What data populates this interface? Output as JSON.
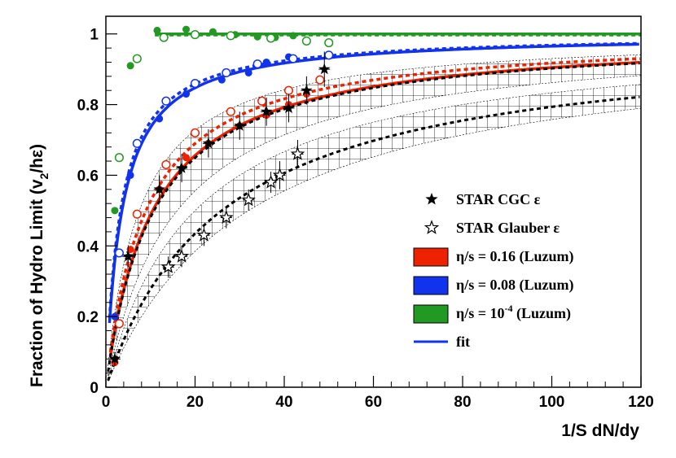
{
  "chart_data": {
    "type": "scatter",
    "title": "",
    "xlabel": "1/S dN/dy",
    "ylabel_parts": {
      "a": "Fraction of Hydro Limit (v",
      "sub": "2",
      "b": "/hε)"
    },
    "xlim": [
      0,
      120
    ],
    "ylim": [
      0,
      1.05
    ],
    "xticks": [
      0,
      20,
      40,
      60,
      80,
      100,
      120
    ],
    "yticks": [
      0,
      0.2,
      0.4,
      0.6,
      0.8,
      1
    ],
    "ytick_labels": [
      "0",
      "0.2",
      "0.4",
      "0.6",
      "0.8",
      "1"
    ],
    "colors": {
      "red": "#ee2200",
      "blue": "#1133ee",
      "green": "#229922",
      "black": "#000000"
    },
    "series": [
      {
        "name": "η/s = 10^-4 (Luzum) filled",
        "color": "green",
        "marker": "filled",
        "x": [
          2,
          5.5,
          11.5,
          18,
          24,
          29,
          34,
          38,
          42
        ],
        "y": [
          0.5,
          0.91,
          1.01,
          1.013,
          1.006,
          0.998,
          0.992,
          0.99,
          0.995
        ]
      },
      {
        "name": "η/s = 10^-4 (Luzum) open",
        "color": "green",
        "marker": "open",
        "x": [
          3,
          7,
          13,
          20,
          28,
          37,
          45,
          50
        ],
        "y": [
          0.65,
          0.93,
          0.99,
          0.998,
          0.995,
          0.988,
          0.98,
          0.975
        ]
      },
      {
        "name": "η/s = 0.08 (Luzum) filled",
        "color": "blue",
        "marker": "filled",
        "x": [
          2,
          5.5,
          12,
          18,
          26,
          32,
          36,
          41
        ],
        "y": [
          0.2,
          0.6,
          0.76,
          0.83,
          0.87,
          0.89,
          0.92,
          0.935
        ]
      },
      {
        "name": "η/s = 0.08 (Luzum) open",
        "color": "blue",
        "marker": "open",
        "x": [
          3,
          7,
          13.5,
          20,
          27,
          34,
          42,
          50
        ],
        "y": [
          0.38,
          0.69,
          0.81,
          0.86,
          0.89,
          0.915,
          0.93,
          0.94
        ]
      },
      {
        "name": "η/s = 0.16 (Luzum) filled",
        "color": "red",
        "marker": "filled",
        "x": [
          2,
          5.5,
          12,
          18,
          23,
          30,
          36,
          41,
          45
        ],
        "y": [
          0.07,
          0.39,
          0.56,
          0.65,
          0.69,
          0.74,
          0.77,
          0.8,
          0.83
        ]
      },
      {
        "name": "η/s = 0.16 (Luzum) open",
        "color": "red",
        "marker": "open",
        "x": [
          3,
          7,
          13.5,
          20,
          28,
          35,
          41,
          48
        ],
        "y": [
          0.18,
          0.49,
          0.63,
          0.72,
          0.78,
          0.81,
          0.84,
          0.87
        ]
      },
      {
        "name": "STAR CGC ε",
        "color": "black",
        "marker": "star-filled",
        "x": [
          2,
          5,
          12,
          17,
          23,
          30,
          36,
          41,
          45,
          49
        ],
        "y": [
          0.08,
          0.37,
          0.56,
          0.62,
          0.69,
          0.74,
          0.78,
          0.79,
          0.84,
          0.9
        ],
        "yerr": [
          0.02,
          0.03,
          0.04,
          0.04,
          0.04,
          0.04,
          0.04,
          0.04,
          0.04,
          0.05
        ]
      },
      {
        "name": "STAR Glauber ε",
        "color": "black",
        "marker": "star-open",
        "x": [
          14,
          17,
          22,
          27,
          32,
          37,
          39,
          43
        ],
        "y": [
          0.34,
          0.37,
          0.43,
          0.48,
          0.53,
          0.58,
          0.6,
          0.66
        ],
        "yerr": [
          0.03,
          0.03,
          0.03,
          0.03,
          0.03,
          0.03,
          0.04,
          0.04
        ]
      }
    ],
    "fits": [
      {
        "color": "green",
        "style": "solid",
        "function": "y=1",
        "x_range": [
          11,
          120
        ]
      },
      {
        "color": "green",
        "style": "dashed",
        "function": "y=1",
        "x_range": [
          11,
          120
        ]
      },
      {
        "color": "blue",
        "style": "solid",
        "K": 3.6,
        "x_range": [
          0.8,
          120
        ]
      },
      {
        "color": "blue",
        "style": "dashed",
        "K": 3.3,
        "x_range": [
          0.8,
          120
        ]
      },
      {
        "color": "red",
        "style": "solid",
        "K": 10.5,
        "x_range": [
          1,
          120
        ]
      },
      {
        "color": "red",
        "style": "dashed",
        "K": 9.0,
        "x_range": [
          1,
          120
        ]
      },
      {
        "color": "black",
        "style": "dashed",
        "K": 10.8,
        "x_range": [
          0.5,
          120
        ]
      },
      {
        "color": "black",
        "style": "dashed",
        "K": 26.0,
        "x_range": [
          0.5,
          120
        ]
      }
    ],
    "bands": [
      {
        "name": "Glauber band",
        "pattern": "hatch",
        "K_low": 32,
        "K_high": 20
      },
      {
        "name": "CGC band",
        "pattern": "hatch",
        "K_low": 16,
        "K_high": 7.5
      }
    ],
    "legend": {
      "position": "right",
      "entries": [
        {
          "type": "star-filled",
          "label": "STAR CGC ε"
        },
        {
          "type": "star-open",
          "label": "STAR Glauber ε"
        },
        {
          "type": "box",
          "color": "red",
          "label": "η/s = 0.16 (Luzum)"
        },
        {
          "type": "box",
          "color": "blue",
          "label": "η/s = 0.08 (Luzum)"
        },
        {
          "type": "box",
          "color": "green",
          "label_parts": {
            "a": "η/s = 10",
            "sup": "-4",
            "b": " (Luzum)"
          }
        },
        {
          "type": "line",
          "color": "blue",
          "label": "fit"
        }
      ]
    }
  }
}
